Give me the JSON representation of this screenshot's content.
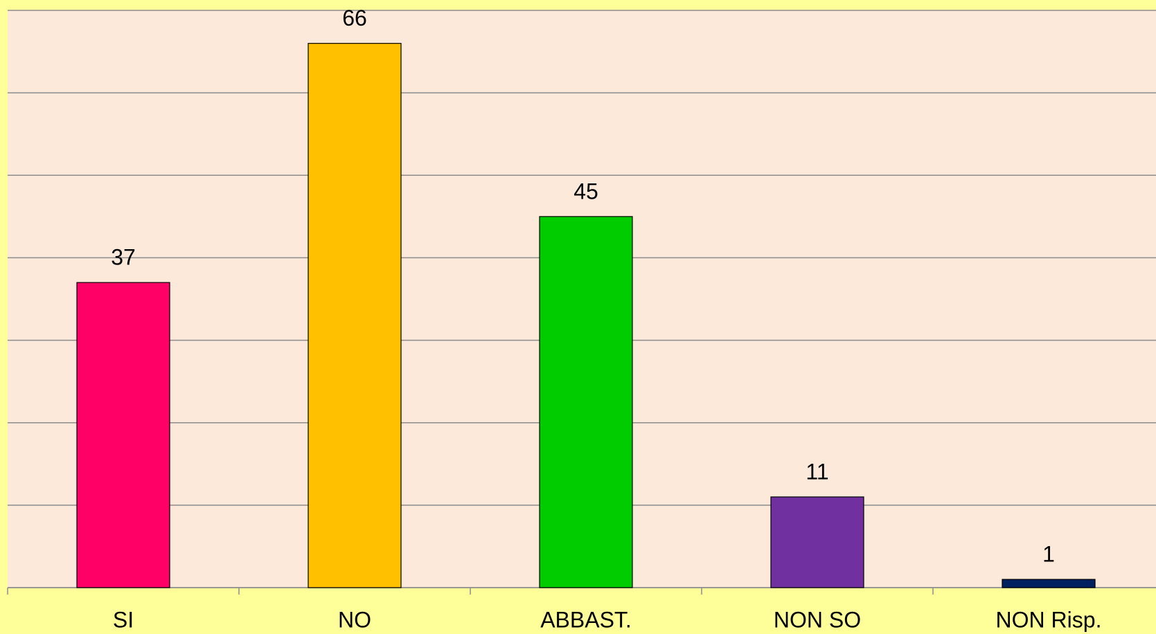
{
  "chart_data": {
    "type": "bar",
    "categories": [
      "SI",
      "NO",
      "ABBAST.",
      "NON SO",
      "NON Risp."
    ],
    "values": [
      37,
      66,
      45,
      11,
      1
    ],
    "colors": [
      "#ff0066",
      "#ffc000",
      "#00cc00",
      "#7030a0",
      "#002060"
    ],
    "ylim": [
      0,
      70
    ],
    "yticks": [
      0,
      10,
      20,
      30,
      40,
      50,
      60,
      70
    ],
    "grid": true
  }
}
